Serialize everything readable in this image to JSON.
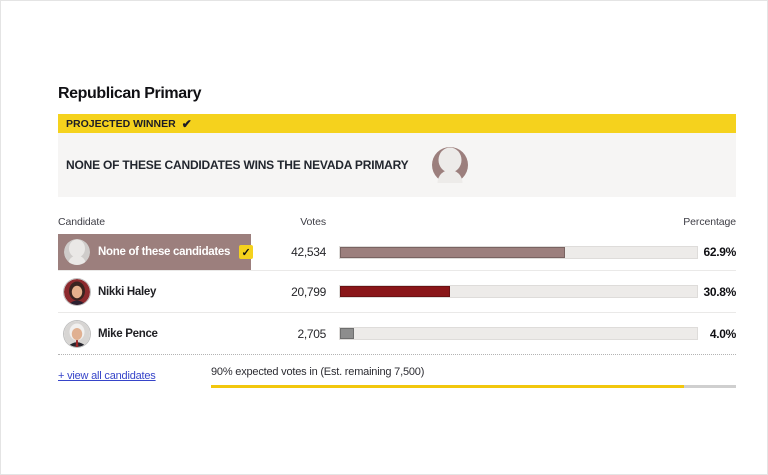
{
  "page": {
    "title": "Republican Primary"
  },
  "banner": {
    "label": "PROJECTED WINNER",
    "check_icon": "✔"
  },
  "winner": {
    "text": "NONE OF THESE CANDIDATES WINS THE NEVADA PRIMARY"
  },
  "table": {
    "headers": {
      "candidate": "Candidate",
      "votes": "Votes",
      "percentage": "Percentage"
    },
    "rows": [
      {
        "name": "None of these candidates",
        "votes": "42,534",
        "pct": "62.9%",
        "bar_color": "#9c7f7d",
        "winner_check": "✓"
      },
      {
        "name": "Nikki Haley",
        "votes": "20,799",
        "pct": "30.8%",
        "bar_color": "#8a1619"
      },
      {
        "name": "Mike Pence",
        "votes": "2,705",
        "pct": "4.0%",
        "bar_color": "#8d8d8d"
      }
    ]
  },
  "footer": {
    "view_all_label": "+ view all candidates",
    "expected_text": "90% expected votes in (Est. remaining 7,500)",
    "expected_pct": "90%"
  },
  "colors": {
    "accent_yellow": "#f5d21d",
    "progress_yellow": "#f2c70d",
    "winner_mauve": "#9c7f7d",
    "haley_red": "#8a1619",
    "pence_gray": "#8d8d8d",
    "link_blue": "#3644c9"
  },
  "chart_data": {
    "type": "bar",
    "orientation": "horizontal",
    "title": "Republican Primary",
    "subtitle": "PROJECTED WINNER: NONE OF THESE CANDIDATES WINS THE NEVADA PRIMARY",
    "categories": [
      "None of these candidates",
      "Nikki Haley",
      "Mike Pence"
    ],
    "series": [
      {
        "name": "Votes",
        "values": [
          42534,
          20799,
          2705
        ]
      },
      {
        "name": "Percentage",
        "values": [
          62.9,
          30.8,
          4.0
        ]
      }
    ],
    "xlim": [
      0,
      100
    ],
    "grid": false,
    "legend_position": "none",
    "annotations": [
      "90% expected votes in (Est. remaining 7,500)",
      "Est. remaining 7,500",
      "90% expected votes in"
    ]
  }
}
